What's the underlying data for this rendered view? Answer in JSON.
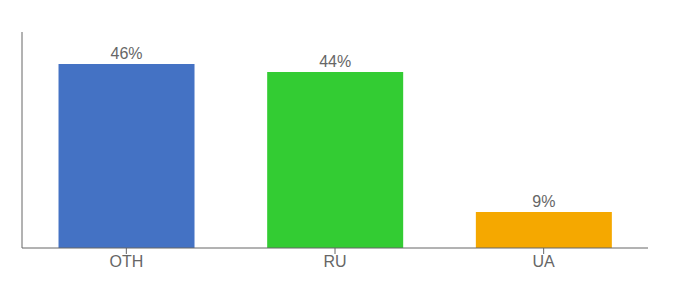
{
  "chart_data": {
    "type": "bar",
    "categories": [
      "OTH",
      "RU",
      "UA"
    ],
    "values": [
      46,
      44,
      9
    ],
    "value_labels": [
      "46%",
      "44%",
      "9%"
    ],
    "colors": [
      "#4472c4",
      "#33cc33",
      "#f5a800"
    ],
    "ylim": [
      0,
      54
    ],
    "data_labels": true,
    "tick_labels": "x"
  }
}
